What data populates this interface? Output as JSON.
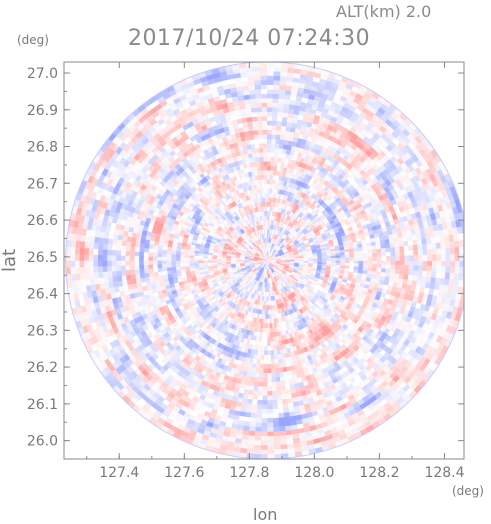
{
  "header": {
    "altitude": "ALT(km) 2.0",
    "timestamp": "2017/10/24 07:24:30"
  },
  "chart_data": {
    "type": "heatmap",
    "title": "2017/10/24 07:24:30",
    "subtitle": "ALT(km) 2.0",
    "xlabel": "lon",
    "ylabel": "lat",
    "x_unit": "(deg)",
    "y_unit": "(deg)",
    "xlim": [
      127.23,
      128.46
    ],
    "ylim": [
      25.95,
      27.03
    ],
    "xticks": [
      "127.4",
      "127.6",
      "127.8",
      "128.0",
      "128.2",
      "128.4"
    ],
    "yticks": [
      "26.0",
      "26.1",
      "26.2",
      "26.3",
      "26.4",
      "26.5",
      "26.6",
      "26.7",
      "26.8",
      "26.9",
      "27.0"
    ],
    "domain": {
      "shape": "circle",
      "center_lon": 127.855,
      "center_lat": 26.49,
      "radius_lon": 0.62,
      "radius_lat": 0.54
    },
    "colormap": {
      "negative": "#9aa6ff",
      "zero": "#ffffff",
      "positive": "#ff9f9f"
    },
    "grid": false
  }
}
